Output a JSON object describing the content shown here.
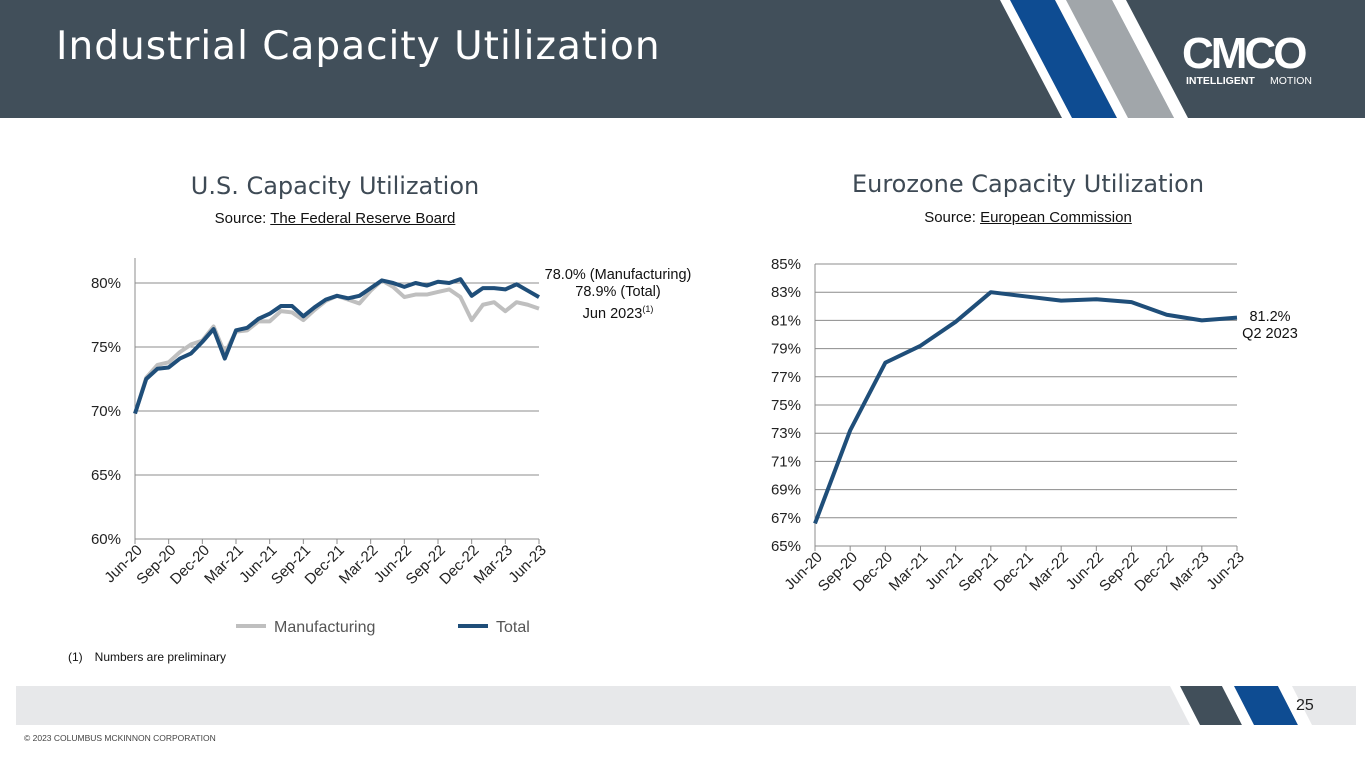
{
  "header": {
    "title": "Industrial Capacity Utilization",
    "logo_text": "CMCO",
    "logo_tagline_bold": "INTELLIGENT",
    "logo_tagline_light": "MOTION"
  },
  "colors": {
    "header_bg": "#414f5a",
    "accent_blue": "#0e4c92",
    "accent_gray": "#a1a6aa",
    "total_line": "#1f4e79",
    "manufacturing_line": "#bfbfbf",
    "eurozone_line": "#1f4e79"
  },
  "us_chart": {
    "title": "U.S. Capacity Utilization",
    "source_prefix": "Source: ",
    "source_link": "The Federal Reserve Board",
    "annotation_line1": "78.0% (Manufacturing)",
    "annotation_line2": "78.9% (Total)",
    "annotation_line3": "Jun 2023",
    "annotation_sup": "(1)"
  },
  "eu_chart": {
    "title": "Eurozone Capacity Utilization",
    "source_prefix": "Source: ",
    "source_link": "European Commission",
    "annotation_line1": "81.2%",
    "annotation_line2": "Q2 2023"
  },
  "footnote": {
    "number": "(1)",
    "text": "Numbers are preliminary"
  },
  "footer": {
    "page_number": "25",
    "copyright": "© 2023 COLUMBUS MCKINNON CORPORATION"
  },
  "chart_data": [
    {
      "type": "line",
      "title": "U.S. Capacity Utilization",
      "ylim": [
        60,
        80
      ],
      "yticks": [
        "60%",
        "65%",
        "70%",
        "75%",
        "80%"
      ],
      "ytick_values": [
        60,
        65,
        70,
        75,
        80
      ],
      "x_tick_labels": [
        "Jun-20",
        "Sep-20",
        "Dec-20",
        "Mar-21",
        "Jun-21",
        "Sep-21",
        "Dec-21",
        "Mar-22",
        "Jun-22",
        "Sep-22",
        "Dec-22",
        "Mar-23",
        "Jun-23"
      ],
      "grid": true,
      "legend": "bottom",
      "series": [
        {
          "name": "Manufacturing",
          "values": [
            69.8,
            72.6,
            73.6,
            73.8,
            74.6,
            75.2,
            75.5,
            76.6,
            74.5,
            76.2,
            76.3,
            77.0,
            77.0,
            77.8,
            77.7,
            77.1,
            77.9,
            78.6,
            79.0,
            78.7,
            78.4,
            79.4,
            80.2,
            79.7,
            78.9,
            79.1,
            79.1,
            79.3,
            79.5,
            78.9,
            77.1,
            78.3,
            78.5,
            77.8,
            78.5,
            78.3,
            78.0
          ]
        },
        {
          "name": "Total",
          "values": [
            69.8,
            72.5,
            73.3,
            73.4,
            74.1,
            74.5,
            75.4,
            76.4,
            74.1,
            76.3,
            76.5,
            77.2,
            77.6,
            78.2,
            78.2,
            77.4,
            78.1,
            78.7,
            79.0,
            78.8,
            79.0,
            79.6,
            80.2,
            80.0,
            79.7,
            80.0,
            79.8,
            80.1,
            80.0,
            80.3,
            79.0,
            79.6,
            79.6,
            79.5,
            79.9,
            79.4,
            78.9
          ]
        }
      ]
    },
    {
      "type": "line",
      "title": "Eurozone Capacity Utilization",
      "ylim": [
        65,
        85
      ],
      "yticks": [
        "65%",
        "67%",
        "69%",
        "71%",
        "73%",
        "75%",
        "77%",
        "79%",
        "81%",
        "83%",
        "85%"
      ],
      "ytick_values": [
        65,
        67,
        69,
        71,
        73,
        75,
        77,
        79,
        81,
        83,
        85
      ],
      "x_tick_labels": [
        "Jun-20",
        "Sep-20",
        "Dec-20",
        "Mar-21",
        "Jun-21",
        "Sep-21",
        "Dec-21",
        "Mar-22",
        "Jun-22",
        "Sep-22",
        "Dec-22",
        "Mar-23",
        "Jun-23"
      ],
      "grid": true,
      "series": [
        {
          "values": [
            66.6,
            73.2,
            78.0,
            79.2,
            80.9,
            83.0,
            82.7,
            82.4,
            82.5,
            82.3,
            81.4,
            81.0,
            81.2
          ]
        }
      ]
    }
  ]
}
